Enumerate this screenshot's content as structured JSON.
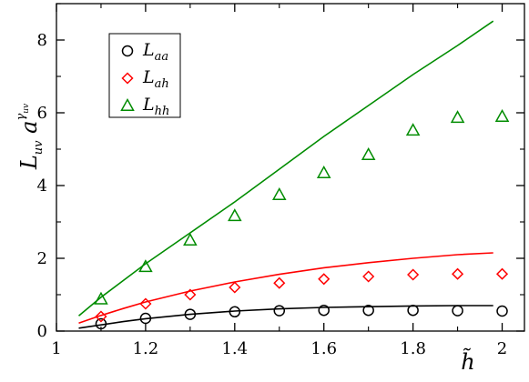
{
  "chart_data": {
    "type": "line",
    "title": "",
    "xlabel": {
      "base": "h̃"
    },
    "ylabel": {
      "main": "L",
      "main_sub": "uv",
      "factor": "a",
      "exp": "γ",
      "exp_sub": "uv"
    },
    "xlim": [
      1,
      2.05
    ],
    "ylim": [
      0,
      9
    ],
    "xticks": [
      1,
      1.2,
      1.4,
      1.6,
      1.8,
      2
    ],
    "xtick_labels": [
      "1",
      "1.2",
      "1.4",
      "1.6",
      "1.8",
      "2"
    ],
    "yticks": [
      0,
      2,
      4,
      6,
      8
    ],
    "ytick_labels": [
      "0",
      "2",
      "4",
      "6",
      "8"
    ],
    "grid": false,
    "legend_position": "top-left",
    "series": [
      {
        "name": "L",
        "sub": "aa",
        "color": "#000000",
        "marker": "circle",
        "points": {
          "x": [
            1.1,
            1.2,
            1.3,
            1.4,
            1.5,
            1.6,
            1.7,
            1.8,
            1.9,
            2.0
          ],
          "y": [
            0.2,
            0.35,
            0.46,
            0.53,
            0.56,
            0.57,
            0.57,
            0.57,
            0.56,
            0.55
          ]
        },
        "curve": {
          "x": [
            1.05,
            1.1,
            1.15,
            1.2,
            1.3,
            1.4,
            1.5,
            1.6,
            1.7,
            1.8,
            1.9,
            1.98
          ],
          "y": [
            0.08,
            0.17,
            0.26,
            0.34,
            0.46,
            0.55,
            0.61,
            0.65,
            0.67,
            0.69,
            0.7,
            0.7
          ]
        }
      },
      {
        "name": "L",
        "sub": "ah",
        "color": "#ff0000",
        "marker": "diamond",
        "points": {
          "x": [
            1.1,
            1.2,
            1.3,
            1.4,
            1.5,
            1.6,
            1.7,
            1.8,
            1.9,
            2.0
          ],
          "y": [
            0.4,
            0.75,
            1.0,
            1.2,
            1.32,
            1.43,
            1.5,
            1.55,
            1.57,
            1.57
          ]
        },
        "curve": {
          "x": [
            1.05,
            1.1,
            1.15,
            1.2,
            1.3,
            1.4,
            1.5,
            1.6,
            1.7,
            1.8,
            1.9,
            1.98
          ],
          "y": [
            0.22,
            0.43,
            0.62,
            0.8,
            1.1,
            1.35,
            1.56,
            1.74,
            1.88,
            2.0,
            2.1,
            2.15
          ]
        }
      },
      {
        "name": "L",
        "sub": "hh",
        "color": "#008c00",
        "marker": "triangle",
        "points": {
          "x": [
            1.1,
            1.2,
            1.3,
            1.4,
            1.5,
            1.6,
            1.7,
            1.8,
            1.9,
            2.0
          ],
          "y": [
            0.88,
            1.77,
            2.5,
            3.17,
            3.75,
            4.35,
            4.85,
            5.52,
            5.87,
            5.9
          ]
        },
        "curve": {
          "x": [
            1.05,
            1.1,
            1.2,
            1.3,
            1.4,
            1.5,
            1.6,
            1.7,
            1.8,
            1.9,
            1.98
          ],
          "y": [
            0.42,
            0.93,
            1.85,
            2.7,
            3.55,
            4.45,
            5.35,
            6.2,
            7.05,
            7.85,
            8.52
          ]
        }
      }
    ]
  }
}
